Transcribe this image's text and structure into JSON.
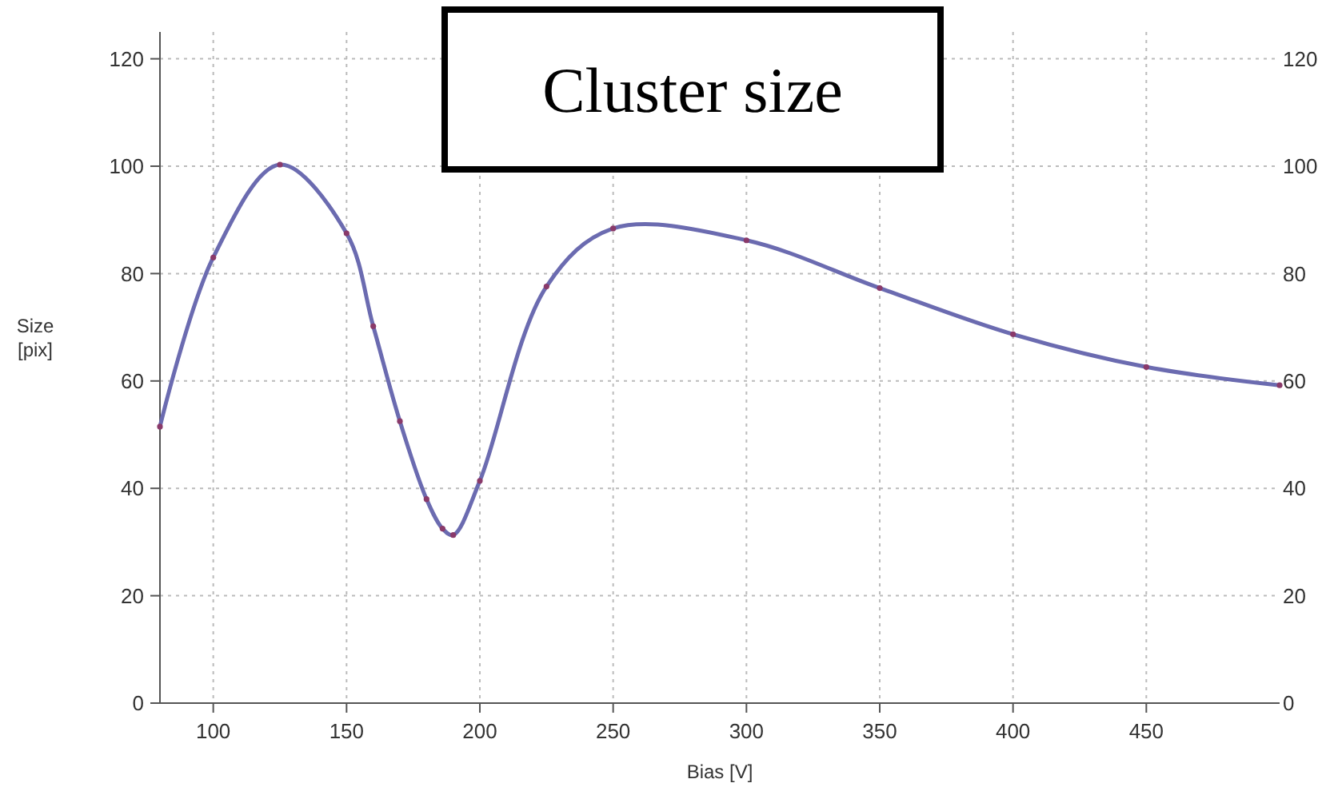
{
  "chart_data": {
    "type": "line",
    "title": "Cluster size",
    "xlabel": "Bias [V]",
    "ylabel": "Size\n[pix]",
    "x": [
      80,
      100,
      125,
      150,
      160,
      170,
      180,
      186,
      190,
      200,
      225,
      250,
      300,
      350,
      400,
      450,
      500
    ],
    "series": [
      {
        "color": "#6b6bb0",
        "values": [
          51.5,
          83,
          100.3,
          87.5,
          70.2,
          52.5,
          38,
          32.5,
          31.3,
          41.4,
          77.6,
          88.4,
          86.2,
          77.3,
          68.7,
          62.6,
          59.2
        ]
      }
    ],
    "xlim": [
      80,
      500
    ],
    "xticks": [
      100,
      150,
      200,
      250,
      300,
      350,
      400,
      450
    ],
    "ylim": [
      0,
      125
    ],
    "yticks": [
      0,
      20,
      40,
      60,
      80,
      100,
      120
    ],
    "y2lim": [
      0,
      125
    ],
    "y2ticks": [
      0,
      20,
      40,
      60,
      80,
      100,
      120
    ],
    "grid": true,
    "marker": "circle",
    "line_style": "solid"
  }
}
